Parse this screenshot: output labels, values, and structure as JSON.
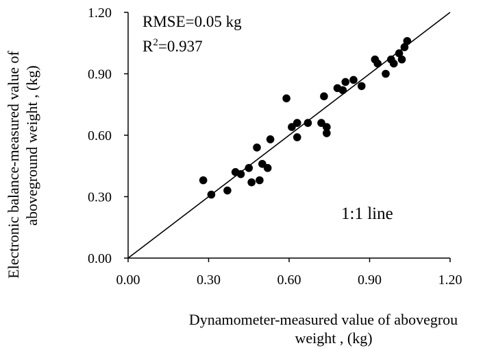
{
  "chart_data": {
    "type": "scatter",
    "xlabel_line1": "Dynamometer-measured value of abovegrou",
    "xlabel_line2": "weight , (kg)",
    "ylabel_line1": "Electronic balance-measured value of",
    "ylabel_line2": "aboveground weight , (kg)",
    "xlim": [
      0,
      1.2
    ],
    "ylim": [
      0,
      1.2
    ],
    "xticks": [
      "0.00",
      "0.30",
      "0.60",
      "0.90",
      "1.20"
    ],
    "yticks": [
      "0.00",
      "0.30",
      "0.60",
      "0.90",
      "1.20"
    ],
    "annotations": {
      "rmse": "RMSE=0.05 kg",
      "r2_prefix": "R",
      "r2_sup": "2",
      "r2_value": "=0.937",
      "line_label": "1:1 line"
    },
    "reference_line": {
      "from": [
        0,
        0
      ],
      "to": [
        1.2,
        1.2
      ]
    },
    "grid": false,
    "points": [
      {
        "x": 0.28,
        "y": 0.38
      },
      {
        "x": 0.31,
        "y": 0.31
      },
      {
        "x": 0.37,
        "y": 0.33
      },
      {
        "x": 0.4,
        "y": 0.42
      },
      {
        "x": 0.42,
        "y": 0.41
      },
      {
        "x": 0.45,
        "y": 0.44
      },
      {
        "x": 0.46,
        "y": 0.37
      },
      {
        "x": 0.48,
        "y": 0.54
      },
      {
        "x": 0.49,
        "y": 0.38
      },
      {
        "x": 0.5,
        "y": 0.46
      },
      {
        "x": 0.52,
        "y": 0.44
      },
      {
        "x": 0.53,
        "y": 0.58
      },
      {
        "x": 0.59,
        "y": 0.78
      },
      {
        "x": 0.61,
        "y": 0.64
      },
      {
        "x": 0.63,
        "y": 0.59
      },
      {
        "x": 0.63,
        "y": 0.66
      },
      {
        "x": 0.67,
        "y": 0.66
      },
      {
        "x": 0.72,
        "y": 0.66
      },
      {
        "x": 0.73,
        "y": 0.79
      },
      {
        "x": 0.74,
        "y": 0.61
      },
      {
        "x": 0.74,
        "y": 0.64
      },
      {
        "x": 0.78,
        "y": 0.83
      },
      {
        "x": 0.8,
        "y": 0.82
      },
      {
        "x": 0.81,
        "y": 0.86
      },
      {
        "x": 0.84,
        "y": 0.87
      },
      {
        "x": 0.87,
        "y": 0.84
      },
      {
        "x": 0.92,
        "y": 0.97
      },
      {
        "x": 0.93,
        "y": 0.95
      },
      {
        "x": 0.96,
        "y": 0.9
      },
      {
        "x": 0.98,
        "y": 0.97
      },
      {
        "x": 0.99,
        "y": 0.95
      },
      {
        "x": 1.01,
        "y": 1.0
      },
      {
        "x": 1.02,
        "y": 0.97
      },
      {
        "x": 1.03,
        "y": 1.03
      },
      {
        "x": 1.04,
        "y": 1.06
      }
    ]
  }
}
